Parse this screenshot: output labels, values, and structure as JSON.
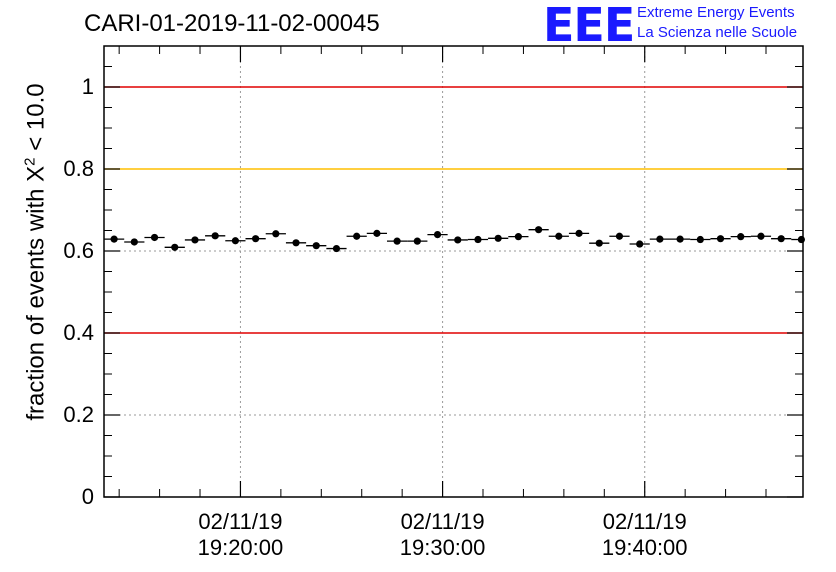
{
  "header": {
    "title": "CARI-01-2019-11-02-00045",
    "logo_text": "EEE",
    "logo_line1": "Extreme Energy Events",
    "logo_line2": "La Scienza nelle Scuole"
  },
  "colors": {
    "logo": "#1a1aff",
    "red_line": "#e00000",
    "orange_line": "#ffbf00",
    "grid": "#9a9a9a",
    "marker": "#000000"
  },
  "chart_data": {
    "type": "scatter",
    "title": "CARI-01-2019-11-02-00045",
    "xlabel": "",
    "ylabel_prefix": "fraction of events with ",
    "ylabel_symbol": "X",
    "ylabel_exponent": "2",
    "ylabel_suffix": " < 10.0",
    "ylim": [
      0,
      1.1
    ],
    "yticks": [
      "0",
      "0.2",
      "0.4",
      "0.6",
      "0.8",
      "1"
    ],
    "x_units": "minutes after 19:00:00",
    "xlim": [
      13.25,
      47.83
    ],
    "xticks": [
      {
        "value": 20,
        "date": "02/11/19",
        "time": "19:20:00"
      },
      {
        "value": 30,
        "date": "02/11/19",
        "time": "19:30:00"
      },
      {
        "value": 40,
        "date": "02/11/19",
        "time": "19:40:00"
      }
    ],
    "reference_lines": [
      {
        "value": 1.0,
        "color": "red"
      },
      {
        "value": 0.8,
        "color": "orange"
      },
      {
        "value": 0.4,
        "color": "red"
      }
    ],
    "bin_width_min": 1.0,
    "series": [
      {
        "name": "fraction",
        "x": [
          13.75,
          14.75,
          15.75,
          16.75,
          17.75,
          18.75,
          19.75,
          20.75,
          21.75,
          22.75,
          23.75,
          24.75,
          25.75,
          26.75,
          27.75,
          28.75,
          29.75,
          30.75,
          31.75,
          32.75,
          33.75,
          34.75,
          35.75,
          36.75,
          37.75,
          38.75,
          39.75,
          40.75,
          41.75,
          42.75,
          43.75,
          44.75,
          45.75,
          46.75,
          47.75
        ],
        "values": [
          0.629,
          0.622,
          0.633,
          0.609,
          0.627,
          0.637,
          0.625,
          0.63,
          0.642,
          0.62,
          0.613,
          0.606,
          0.636,
          0.643,
          0.624,
          0.624,
          0.64,
          0.627,
          0.628,
          0.631,
          0.635,
          0.652,
          0.636,
          0.643,
          0.619,
          0.636,
          0.617,
          0.629,
          0.629,
          0.628,
          0.63,
          0.635,
          0.636,
          0.63,
          0.628
        ],
        "error": 0.007
      }
    ]
  }
}
